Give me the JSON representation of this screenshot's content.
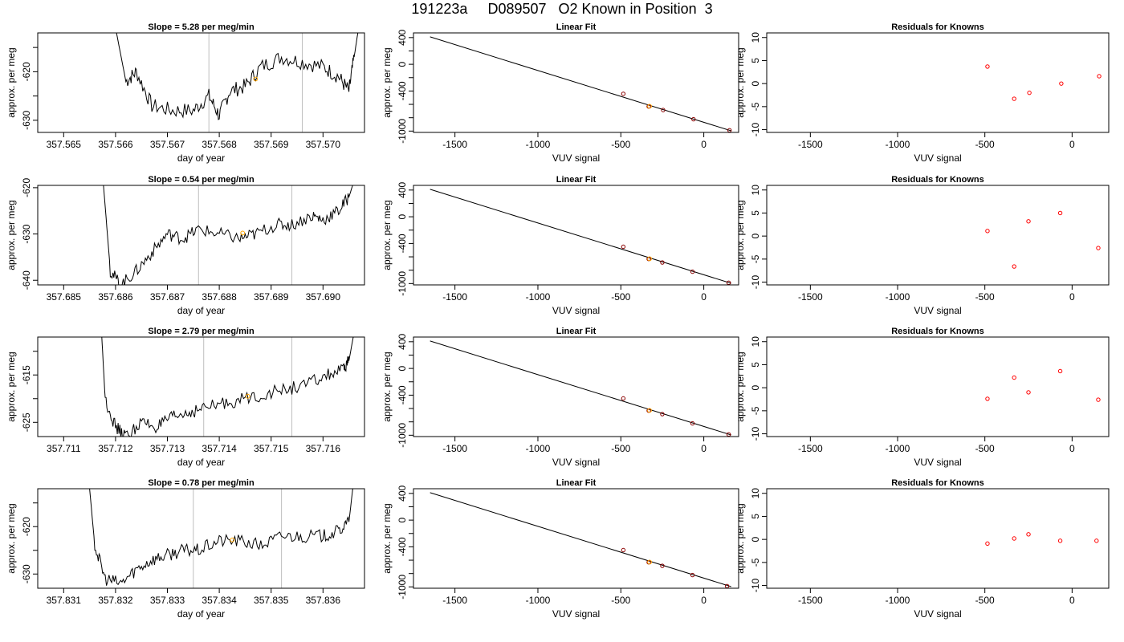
{
  "page_title": "191223a     D089507   O2 Known in Position  3",
  "colors": {
    "axes": "#000000",
    "trace": "#000000",
    "vline": "#bebebe",
    "known_point": "#ffa500",
    "residual_point": "#ff0000",
    "fit_point": "#8b0000"
  },
  "chart_data": [
    {
      "type": "line",
      "panel": "trace",
      "row": 1,
      "title": "Slope =  5.28  per meg/min",
      "xlabel": "day of year",
      "ylabel": "approx. per meg",
      "xlim": [
        357.5645,
        357.5708
      ],
      "ylim": [
        -632.5,
        -612
      ],
      "xticks": [
        357.565,
        357.566,
        357.567,
        357.568,
        357.569,
        357.57
      ],
      "xtick_labels": [
        "357.565",
        "357.566",
        "357.567",
        "357.568",
        "357.569",
        "357.570"
      ],
      "yticks": [
        -630,
        -625,
        -620,
        -615
      ],
      "ytick_labels": [
        "-630",
        "",
        "-620",
        ""
      ],
      "vlines": [
        357.5678,
        357.5696
      ],
      "trace_knots": [
        [
          357.5658,
          -600
        ],
        [
          357.5662,
          -622
        ],
        [
          357.5664,
          -620
        ],
        [
          357.5667,
          -627
        ],
        [
          357.5671,
          -628
        ],
        [
          357.5675,
          -628
        ],
        [
          357.5678,
          -625
        ],
        [
          357.568,
          -629
        ],
        [
          357.5682,
          -624
        ],
        [
          357.5685,
          -623
        ],
        [
          357.5688,
          -619
        ],
        [
          357.5692,
          -617
        ],
        [
          357.5696,
          -618
        ],
        [
          357.57,
          -619
        ],
        [
          357.5703,
          -621
        ],
        [
          357.5705,
          -624
        ],
        [
          357.5706,
          -617
        ],
        [
          357.5707,
          -610
        ]
      ],
      "trace_noise": 1.6,
      "highlight_point": [
        357.5687,
        -621.5
      ]
    },
    {
      "type": "scatter",
      "panel": "fit",
      "row": 1,
      "title": "Linear Fit",
      "xlabel": "VUV signal",
      "ylabel": "approx. per meg",
      "xlim": [
        -1750,
        210
      ],
      "ylim": [
        -1020,
        470
      ],
      "xticks": [
        -1500,
        -1000,
        -500,
        0
      ],
      "xtick_labels": [
        "-1500",
        "-1000",
        "-500",
        "0"
      ],
      "yticks": [
        -1000,
        -800,
        -600,
        -400,
        -200,
        0,
        200,
        400
      ],
      "ytick_labels": [
        "-1000",
        "",
        "",
        "-400",
        "",
        "0",
        "",
        "400"
      ],
      "line": {
        "x": [
          -1650,
          165
        ],
        "y": [
          411,
          -996
        ]
      },
      "points": {
        "x": [
          -485,
          -332,
          -245,
          -62,
          155
        ],
        "y": [
          -442,
          -632,
          -685,
          -823,
          -988
        ]
      },
      "highlight_point": [
        -327,
        -629
      ]
    },
    {
      "type": "scatter",
      "panel": "residuals",
      "row": 1,
      "title": "Residuals for Knowns",
      "xlabel": "VUV signal",
      "ylabel": "approx. per meg",
      "xlim": [
        -1750,
        210
      ],
      "ylim": [
        -10.6,
        11
      ],
      "xticks": [
        -1500,
        -1000,
        -500,
        0
      ],
      "xtick_labels": [
        "-1500",
        "-1000",
        "-500",
        "0"
      ],
      "yticks": [
        -10,
        -5,
        0,
        5,
        10
      ],
      "ytick_labels": [
        "-10",
        "-5",
        "0",
        "5",
        "10"
      ],
      "points": {
        "x": [
          -485,
          -332,
          -245,
          -62,
          155
        ],
        "y": [
          3.7,
          -3.3,
          -2.0,
          0.0,
          1.6
        ]
      }
    },
    {
      "type": "line",
      "panel": "trace",
      "row": 2,
      "title": "Slope =  0.54  per meg/min",
      "xlabel": "day of year",
      "ylabel": "approx. per meg",
      "xlim": [
        357.6845,
        357.6908
      ],
      "ylim": [
        -641,
        -619.5
      ],
      "xticks": [
        357.685,
        357.686,
        357.687,
        357.688,
        357.689,
        357.69
      ],
      "xtick_labels": [
        "357.685",
        "357.686",
        "357.687",
        "357.688",
        "357.689",
        "357.690"
      ],
      "yticks": [
        -640,
        -630,
        -620
      ],
      "ytick_labels": [
        "-640",
        "-630",
        "-620"
      ],
      "vlines": [
        357.6876,
        357.6894
      ],
      "trace_knots": [
        [
          357.6857,
          -610
        ],
        [
          357.6859,
          -638
        ],
        [
          357.6861,
          -641
        ],
        [
          357.6864,
          -638
        ],
        [
          357.6867,
          -634
        ],
        [
          357.687,
          -630
        ],
        [
          357.6873,
          -631
        ],
        [
          357.6876,
          -629
        ],
        [
          357.688,
          -630
        ],
        [
          357.6884,
          -631
        ],
        [
          357.6887,
          -630
        ],
        [
          357.6891,
          -628
        ],
        [
          357.6894,
          -628
        ],
        [
          357.6898,
          -626
        ],
        [
          357.69,
          -627
        ],
        [
          357.6903,
          -625
        ],
        [
          357.6905,
          -622
        ],
        [
          357.6907,
          -615
        ]
      ],
      "trace_noise": 1.4,
      "highlight_point": [
        357.68845,
        -629.8
      ]
    },
    {
      "type": "scatter",
      "panel": "fit",
      "row": 2,
      "title": "Linear Fit",
      "xlabel": "VUV signal",
      "ylabel": "approx. per meg",
      "xlim": [
        -1750,
        210
      ],
      "ylim": [
        -1020,
        470
      ],
      "xticks": [
        -1500,
        -1000,
        -500,
        0
      ],
      "xtick_labels": [
        "-1500",
        "-1000",
        "-500",
        "0"
      ],
      "yticks": [
        -1000,
        -800,
        -600,
        -400,
        -200,
        0,
        200,
        400
      ],
      "ytick_labels": [
        "-1000",
        "",
        "",
        "-400",
        "",
        "0",
        "",
        "400"
      ],
      "line": {
        "x": [
          -1650,
          165
        ],
        "y": [
          411,
          -996
        ]
      },
      "points": {
        "x": [
          -485,
          -332,
          -250,
          -68,
          150
        ],
        "y": [
          -449,
          -632,
          -684,
          -823,
          -988
        ]
      },
      "highlight_point": [
        -327,
        -629
      ]
    },
    {
      "type": "scatter",
      "panel": "residuals",
      "row": 2,
      "title": "Residuals for Knowns",
      "xlabel": "VUV signal",
      "ylabel": "approx. per meg",
      "xlim": [
        -1750,
        210
      ],
      "ylim": [
        -10.6,
        11
      ],
      "xticks": [
        -1500,
        -1000,
        -500,
        0
      ],
      "xtick_labels": [
        "-1500",
        "-1000",
        "-500",
        "0"
      ],
      "yticks": [
        -10,
        -5,
        0,
        5,
        10
      ],
      "ytick_labels": [
        "-10",
        "-5",
        "0",
        "5",
        "10"
      ],
      "points": {
        "x": [
          -485,
          -332,
          -250,
          -68,
          150
        ],
        "y": [
          1.1,
          -6.6,
          3.2,
          5.0,
          -2.6
        ]
      }
    },
    {
      "type": "line",
      "panel": "trace",
      "row": 3,
      "title": "Slope =  2.79  per meg/min",
      "xlabel": "day of year",
      "ylabel": "approx. per meg",
      "xlim": [
        357.7105,
        357.7168
      ],
      "ylim": [
        -628,
        -607
      ],
      "xticks": [
        357.711,
        357.712,
        357.713,
        357.714,
        357.715,
        357.716
      ],
      "xtick_labels": [
        "357.711",
        "357.712",
        "357.713",
        "357.714",
        "357.715",
        "357.716"
      ],
      "yticks": [
        -625,
        -620,
        -615,
        -610
      ],
      "ytick_labels": [
        "-625",
        "",
        "-615",
        ""
      ],
      "vlines": [
        357.7137,
        357.7154
      ],
      "trace_knots": [
        [
          357.7117,
          -600
        ],
        [
          357.7118,
          -620
        ],
        [
          357.712,
          -626
        ],
        [
          357.7122,
          -628
        ],
        [
          357.7125,
          -625
        ],
        [
          357.7128,
          -626
        ],
        [
          357.7131,
          -624
        ],
        [
          357.7134,
          -623
        ],
        [
          357.7137,
          -622
        ],
        [
          357.7141,
          -621
        ],
        [
          357.7145,
          -620
        ],
        [
          357.7149,
          -619
        ],
        [
          357.7153,
          -618
        ],
        [
          357.7157,
          -617
        ],
        [
          357.7161,
          -615
        ],
        [
          357.7164,
          -614
        ],
        [
          357.7165,
          -612
        ],
        [
          357.7167,
          -600
        ]
      ],
      "trace_noise": 1.4,
      "highlight_point": [
        357.71455,
        -619.5
      ]
    },
    {
      "type": "scatter",
      "panel": "fit",
      "row": 3,
      "title": "Linear Fit",
      "xlabel": "VUV signal",
      "ylabel": "approx. per meg",
      "xlim": [
        -1750,
        210
      ],
      "ylim": [
        -1020,
        470
      ],
      "xticks": [
        -1500,
        -1000,
        -500,
        0
      ],
      "xtick_labels": [
        "-1500",
        "-1000",
        "-500",
        "0"
      ],
      "yticks": [
        -1000,
        -800,
        -600,
        -400,
        -200,
        0,
        200,
        400
      ],
      "ytick_labels": [
        "-1000",
        "",
        "",
        "-400",
        "",
        "0",
        "",
        "400"
      ],
      "line": {
        "x": [
          -1650,
          165
        ],
        "y": [
          411,
          -996
        ]
      },
      "points": {
        "x": [
          -485,
          -332,
          -250,
          -68,
          150
        ],
        "y": [
          -449,
          -632,
          -684,
          -823,
          -988
        ]
      },
      "highlight_point": [
        -327,
        -629
      ]
    },
    {
      "type": "scatter",
      "panel": "residuals",
      "row": 3,
      "title": "Residuals for Knowns",
      "xlabel": "VUV signal",
      "ylabel": "approx. per meg",
      "xlim": [
        -1750,
        210
      ],
      "ylim": [
        -10.6,
        11
      ],
      "xticks": [
        -1500,
        -1000,
        -500,
        0
      ],
      "xtick_labels": [
        "-1500",
        "-1000",
        "-500",
        "0"
      ],
      "yticks": [
        -10,
        -5,
        0,
        5,
        10
      ],
      "ytick_labels": [
        "-10",
        "-5",
        "0",
        "5",
        "10"
      ],
      "points": {
        "x": [
          -485,
          -332,
          -250,
          -68,
          150
        ],
        "y": [
          -2.4,
          2.2,
          -1.0,
          3.6,
          -2.6
        ]
      }
    },
    {
      "type": "line",
      "panel": "trace",
      "row": 4,
      "title": "Slope =  0.78  per meg/min",
      "xlabel": "day of year",
      "ylabel": "approx. per meg",
      "xlim": [
        357.8305,
        357.8368
      ],
      "ylim": [
        -633,
        -612
      ],
      "xticks": [
        357.831,
        357.832,
        357.833,
        357.834,
        357.835,
        357.836
      ],
      "xtick_labels": [
        "357.831",
        "357.832",
        "357.833",
        "357.834",
        "357.835",
        "357.836"
      ],
      "yticks": [
        -630,
        -625,
        -620,
        -615
      ],
      "ytick_labels": [
        "-630",
        "",
        "-620",
        ""
      ],
      "vlines": [
        357.8335,
        357.8352
      ],
      "trace_knots": [
        [
          357.8314,
          -600
        ],
        [
          357.8316,
          -624
        ],
        [
          357.8318,
          -631
        ],
        [
          357.8321,
          -632
        ],
        [
          357.8324,
          -629
        ],
        [
          357.8327,
          -627
        ],
        [
          357.833,
          -626
        ],
        [
          357.8333,
          -625
        ],
        [
          357.8336,
          -625
        ],
        [
          357.834,
          -623
        ],
        [
          357.8344,
          -623
        ],
        [
          357.8348,
          -624
        ],
        [
          357.8352,
          -622
        ],
        [
          357.8356,
          -622
        ],
        [
          357.836,
          -622
        ],
        [
          357.8363,
          -621
        ],
        [
          357.8365,
          -619
        ],
        [
          357.8367,
          -600
        ]
      ],
      "trace_noise": 1.4,
      "highlight_point": [
        357.83425,
        -622.8
      ]
    },
    {
      "type": "scatter",
      "panel": "fit",
      "row": 4,
      "title": "Linear Fit",
      "xlabel": "VUV signal",
      "ylabel": "approx. per meg",
      "xlim": [
        -1750,
        210
      ],
      "ylim": [
        -1020,
        470
      ],
      "xticks": [
        -1500,
        -1000,
        -500,
        0
      ],
      "xtick_labels": [
        "-1500",
        "-1000",
        "-500",
        "0"
      ],
      "yticks": [
        -1000,
        -800,
        -600,
        -400,
        -200,
        0,
        200,
        400
      ],
      "ytick_labels": [
        "-1000",
        "",
        "",
        "-400",
        "",
        "0",
        "",
        "400"
      ],
      "line": {
        "x": [
          -1650,
          165
        ],
        "y": [
          411,
          -996
        ]
      },
      "points": {
        "x": [
          -485,
          -332,
          -250,
          -68,
          140
        ],
        "y": [
          -449,
          -632,
          -684,
          -823,
          -988
        ]
      },
      "highlight_point": [
        -327,
        -629
      ]
    },
    {
      "type": "scatter",
      "panel": "residuals",
      "row": 4,
      "title": "Residuals for Knowns",
      "xlabel": "VUV signal",
      "ylabel": "approx. per meg",
      "xlim": [
        -1750,
        210
      ],
      "ylim": [
        -10.6,
        11
      ],
      "xticks": [
        -1500,
        -1000,
        -500,
        0
      ],
      "xtick_labels": [
        "-1500",
        "-1000",
        "-500",
        "0"
      ],
      "yticks": [
        -10,
        -5,
        0,
        5,
        10
      ],
      "ytick_labels": [
        "-10",
        "-5",
        "0",
        "5",
        "10"
      ],
      "points": {
        "x": [
          -485,
          -332,
          -250,
          -68,
          140
        ],
        "y": [
          -0.9,
          0.2,
          1.1,
          -0.3,
          -0.3
        ]
      }
    }
  ]
}
